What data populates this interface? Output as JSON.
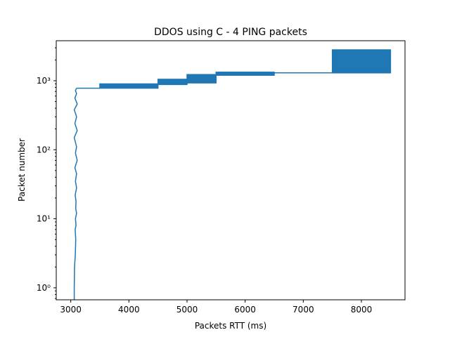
{
  "chart_data": {
    "type": "line",
    "title": "DDOS using C - 4 PING  packets",
    "xlabel": "Packets RTT (ms)",
    "ylabel": "Packet number",
    "xscale": "linear",
    "yscale": "log",
    "xlim": [
      2750,
      8750
    ],
    "ylim": [
      0.67,
      3800
    ],
    "grid": false,
    "legend": "none",
    "x_ticks": [
      3000,
      4000,
      5000,
      6000,
      7000,
      8000
    ],
    "x_tick_labels": [
      "3000",
      "4000",
      "5000",
      "6000",
      "7000",
      "8000"
    ],
    "y_ticks": [
      1,
      10,
      100,
      1000
    ],
    "y_tick_labels": [
      "10⁰",
      "10¹",
      "10²",
      "10³"
    ],
    "series": [
      {
        "color": "#1f77b4",
        "segments": [
          {
            "kind": "line",
            "points": [
              [
                3060,
                0.67
              ],
              [
                3060,
                1
              ],
              [
                3065,
                2
              ],
              [
                3078,
                3
              ],
              [
                3085,
                5
              ],
              [
                3075,
                7
              ],
              [
                3090,
                8
              ],
              [
                3080,
                10
              ],
              [
                3100,
                12
              ],
              [
                3085,
                14
              ],
              [
                3090,
                18
              ],
              [
                3075,
                22
              ],
              [
                3100,
                28
              ],
              [
                3080,
                35
              ],
              [
                3100,
                45
              ],
              [
                3070,
                55
              ],
              [
                3110,
                70
              ],
              [
                3080,
                90
              ],
              [
                3100,
                110
              ],
              [
                3060,
                150
              ],
              [
                3110,
                190
              ],
              [
                3070,
                240
              ],
              [
                3100,
                300
              ],
              [
                3060,
                380
              ],
              [
                3110,
                460
              ],
              [
                3070,
                560
              ],
              [
                3100,
                650
              ],
              [
                3080,
                720
              ],
              [
                3100,
                780
              ]
            ]
          },
          {
            "kind": "line",
            "points": [
              [
                3100,
                780
              ],
              [
                3500,
                780
              ]
            ]
          },
          {
            "kind": "band",
            "x": [
              3500,
              4500
            ],
            "y": [
              780,
              900
            ]
          },
          {
            "kind": "band",
            "x": [
              4500,
              5000
            ],
            "y": [
              880,
              1050
            ]
          },
          {
            "kind": "band",
            "x": [
              5000,
              5500
            ],
            "y": [
              930,
              1230
            ]
          },
          {
            "kind": "band",
            "x": [
              5500,
              6500
            ],
            "y": [
              1200,
              1330
            ]
          },
          {
            "kind": "line",
            "points": [
              [
                6500,
                1300
              ],
              [
                7500,
                1300
              ]
            ]
          },
          {
            "kind": "band",
            "x": [
              7500,
              8500
            ],
            "y": [
              1300,
              2800
            ]
          }
        ]
      }
    ]
  }
}
